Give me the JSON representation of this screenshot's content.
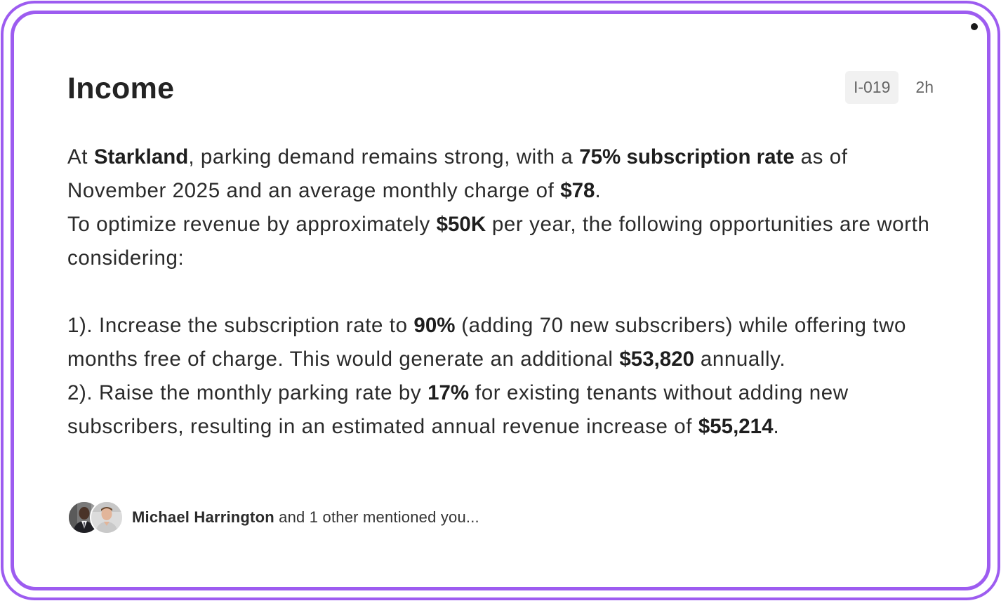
{
  "card": {
    "title": "Income",
    "id_badge": "I-019",
    "timestamp": "2h",
    "paragraph1": {
      "t1": "At ",
      "b1": "Starkland",
      "t2": ", parking demand remains strong, with a ",
      "b2": "75% subscription rate",
      "t3": " as of November 2025 and an average monthly charge of ",
      "b3": "$78",
      "t4": "."
    },
    "paragraph2": {
      "t1": "To optimize revenue by approximately ",
      "b1": "$50K",
      "t2": " per year, the following opportunities are worth considering:"
    },
    "item1": {
      "t1": "1). Increase the subscription rate to ",
      "b1": "90%",
      "t2": " (adding 70 new subscribers) while offering two months free of charge. This would generate an additional ",
      "b2": "$53,820",
      "t3": " annually."
    },
    "item2": {
      "t1": "2). Raise the monthly parking rate by ",
      "b1": "17%",
      "t2": " for existing tenants without adding new subscribers, resulting in an estimated annual revenue increase of ",
      "b2": "$55,214",
      "t3": "."
    },
    "footer": {
      "author": "Michael Harrington",
      "rest": " and 1 other mentioned you..."
    }
  },
  "colors": {
    "frame": "#9d5cf0",
    "badge_bg": "#f1f1f1",
    "text": "#2a2a2a",
    "muted": "#666666"
  }
}
